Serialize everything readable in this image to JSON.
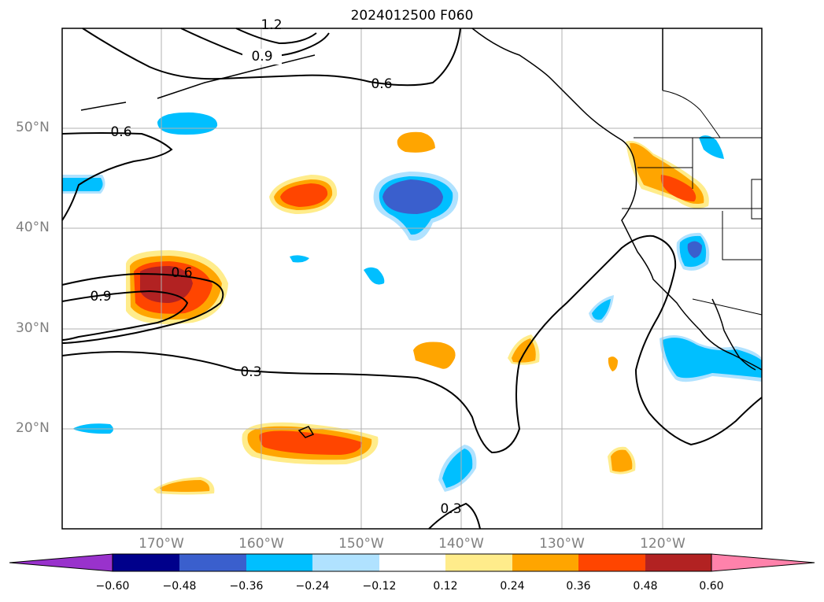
{
  "title": "2024012500 F060",
  "map": {
    "type": "contour-map",
    "region": "North Pacific / western North America",
    "lat_labels": [
      "50°N",
      "40°N",
      "30°N",
      "20°N"
    ],
    "lon_labels": [
      "170°W",
      "160°W",
      "150°W",
      "140°W",
      "130°W",
      "120°W"
    ],
    "contour_labels": [
      "1.2",
      "0.9",
      "0.6",
      "0.6",
      "0.6",
      "0.9",
      "0.3",
      "0.3"
    ],
    "grid": true
  },
  "colorbar": {
    "ticks": [
      "−0.60",
      "−0.48",
      "−0.36",
      "−0.24",
      "−0.12",
      "0.12",
      "0.24",
      "0.36",
      "0.48",
      "0.60"
    ],
    "colors": [
      "#9932cc",
      "#00008b",
      "#3a5fcd",
      "#00bfff",
      "#b0e2ff",
      "#ffffff",
      "#ffec8b",
      "#ffa500",
      "#ff4500",
      "#b22222",
      "#ff82ab"
    ]
  }
}
